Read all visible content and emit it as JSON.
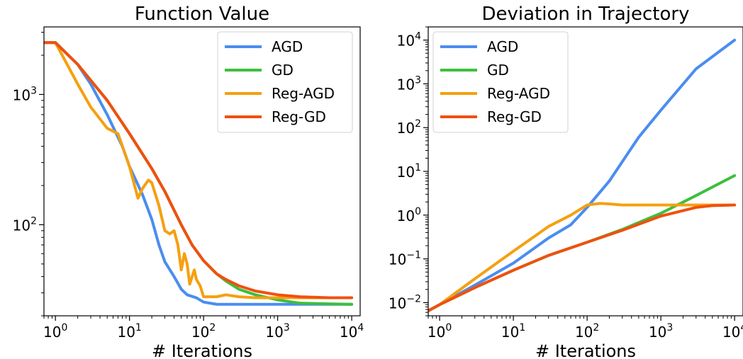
{
  "chart_data": [
    {
      "type": "line",
      "title": "Function Value",
      "xlabel": "# Iterations",
      "ylabel": "",
      "xscale": "log",
      "yscale": "log",
      "xlim": [
        0.7,
        13000
      ],
      "ylim": [
        20,
        3300
      ],
      "xticks": [
        1,
        10,
        100,
        1000,
        10000
      ],
      "yticks": [
        100,
        1000
      ],
      "legend": "top-right",
      "series": [
        {
          "name": "AGD",
          "color": "#4a8df0",
          "x": [
            0.7,
            1,
            2,
            3,
            5,
            8,
            10,
            15,
            20,
            25,
            30,
            40,
            50,
            60,
            80,
            100,
            150,
            200,
            500,
            1000,
            10000
          ],
          "y": [
            2500,
            2500,
            1700,
            1200,
            700,
            400,
            280,
            170,
            110,
            70,
            52,
            40,
            32,
            29,
            27.5,
            25.5,
            24.5,
            24.5,
            24.5,
            24.5,
            24.5
          ]
        },
        {
          "name": "GD",
          "color": "#3dbf3d",
          "x": [
            0.7,
            1,
            2,
            5,
            10,
            20,
            30,
            50,
            70,
            100,
            150,
            200,
            300,
            500,
            1000,
            2000,
            5000,
            10000
          ],
          "y": [
            2500,
            2500,
            1700,
            900,
            500,
            270,
            180,
            100,
            70,
            53,
            42,
            37,
            32,
            29,
            26.5,
            25,
            24.7,
            24.5
          ]
        },
        {
          "name": "Reg-AGD",
          "color": "#f5a010",
          "x": [
            0.7,
            1,
            2,
            3,
            5,
            7,
            10,
            13,
            15,
            18,
            20,
            25,
            30,
            35,
            40,
            45,
            50,
            55,
            60,
            65,
            70,
            75,
            80,
            90,
            100,
            150,
            200,
            300,
            500,
            1000,
            10000
          ],
          "y": [
            2500,
            2500,
            1200,
            800,
            550,
            500,
            280,
            160,
            190,
            220,
            210,
            140,
            90,
            85,
            90,
            70,
            45,
            60,
            50,
            35,
            40,
            45,
            38,
            34,
            28,
            28,
            29,
            28,
            27.5,
            27.5,
            27.5
          ]
        },
        {
          "name": "Reg-GD",
          "color": "#f0500f",
          "x": [
            0.7,
            1,
            2,
            5,
            10,
            20,
            30,
            50,
            70,
            100,
            150,
            200,
            300,
            500,
            1000,
            2000,
            5000,
            10000
          ],
          "y": [
            2500,
            2500,
            1700,
            900,
            500,
            270,
            180,
            100,
            70,
            53,
            42,
            38,
            34,
            31,
            29,
            28,
            27.5,
            27.5
          ]
        }
      ]
    },
    {
      "type": "line",
      "title": "Deviation in Trajectory",
      "xlabel": "# Iterations",
      "ylabel": "",
      "xscale": "log",
      "yscale": "log",
      "xlim": [
        0.7,
        13000
      ],
      "ylim": [
        0.005,
        20000
      ],
      "xticks": [
        1,
        10,
        100,
        1000,
        10000
      ],
      "yticks": [
        0.01,
        0.1,
        1,
        10,
        100,
        1000,
        10000
      ],
      "legend": "top-left",
      "series": [
        {
          "name": "AGD",
          "color": "#4a8df0",
          "x": [
            0.7,
            1,
            3,
            10,
            30,
            60,
            100,
            200,
            500,
            1000,
            3000,
            10000
          ],
          "y": [
            0.0065,
            0.009,
            0.025,
            0.08,
            0.3,
            0.6,
            1.5,
            6,
            60,
            250,
            2200,
            10000
          ]
        },
        {
          "name": "GD",
          "color": "#3dbf3d",
          "x": [
            0.7,
            1,
            3,
            10,
            30,
            100,
            300,
            1000,
            3000,
            10000
          ],
          "y": [
            0.0065,
            0.009,
            0.022,
            0.055,
            0.12,
            0.24,
            0.47,
            1.1,
            2.8,
            8
          ]
        },
        {
          "name": "Reg-AGD",
          "color": "#f5a010",
          "x": [
            0.7,
            1,
            3,
            10,
            30,
            60,
            100,
            150,
            200,
            300,
            500,
            1000,
            3000,
            10000
          ],
          "y": [
            0.0065,
            0.009,
            0.035,
            0.15,
            0.55,
            1.0,
            1.7,
            1.85,
            1.8,
            1.7,
            1.7,
            1.7,
            1.7,
            1.7
          ]
        },
        {
          "name": "Reg-GD",
          "color": "#f0500f",
          "x": [
            0.7,
            1,
            3,
            10,
            30,
            100,
            300,
            1000,
            3000,
            5000,
            10000
          ],
          "y": [
            0.0065,
            0.009,
            0.022,
            0.055,
            0.12,
            0.24,
            0.45,
            0.95,
            1.5,
            1.65,
            1.7
          ]
        }
      ]
    }
  ]
}
